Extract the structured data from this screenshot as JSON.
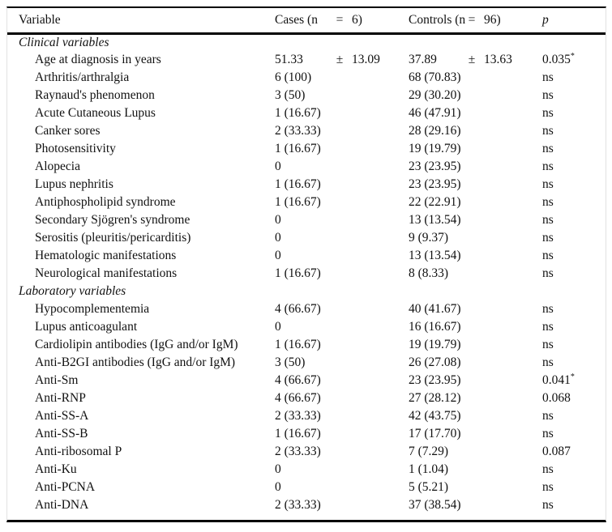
{
  "table": {
    "headers": {
      "variable": "Variable",
      "cases_left": "Cases (n",
      "cases_eq": "=",
      "cases_right": "6)",
      "controls_left": "Controls (n",
      "controls_eq": "=",
      "controls_right": "96)",
      "p": "p"
    },
    "sections": [
      {
        "title": "Clinical variables",
        "rows": [
          {
            "label": "Age at diagnosis in years",
            "cases_val": "51.33",
            "cases_pm": "±",
            "cases_sd": "13.09",
            "controls_val": "37.89",
            "controls_pm": "±",
            "controls_sd": "13.63",
            "p": "0.035",
            "p_sup": "*"
          },
          {
            "label": "Arthritis/arthralgia",
            "cases_val": "6 (100)",
            "controls_val": "68 (70.83)",
            "p": "ns"
          },
          {
            "label": "Raynaud's phenomenon",
            "cases_val": "3 (50)",
            "controls_val": "29 (30.20)",
            "p": "ns"
          },
          {
            "label": "Acute Cutaneous Lupus",
            "cases_val": "1 (16.67)",
            "controls_val": "46 (47.91)",
            "p": "ns"
          },
          {
            "label": "Canker sores",
            "cases_val": "2 (33.33)",
            "controls_val": "28 (29.16)",
            "p": "ns"
          },
          {
            "label": "Photosensitivity",
            "cases_val": "1 (16.67)",
            "controls_val": "19 (19.79)",
            "p": "ns"
          },
          {
            "label": "Alopecia",
            "cases_val": "0",
            "controls_val": "23 (23.95)",
            "p": "ns"
          },
          {
            "label": "Lupus nephritis",
            "cases_val": "1 (16.67)",
            "controls_val": "23 (23.95)",
            "p": "ns"
          },
          {
            "label": "Antiphospholipid syndrome",
            "cases_val": "1 (16.67)",
            "controls_val": "22 (22.91)",
            "p": "ns"
          },
          {
            "label": "Secondary Sjögren's syndrome",
            "cases_val": "0",
            "controls_val": "13 (13.54)",
            "p": "ns"
          },
          {
            "label": "Serositis (pleuritis/pericarditis)",
            "cases_val": "0",
            "controls_val": "9 (9.37)",
            "p": "ns"
          },
          {
            "label": "Hematologic manifestations",
            "cases_val": "0",
            "controls_val": "13 (13.54)",
            "p": "ns"
          },
          {
            "label": "Neurological manifestations",
            "cases_val": "1 (16.67)",
            "controls_val": "8 (8.33)",
            "p": "ns"
          }
        ]
      },
      {
        "title": "Laboratory variables",
        "rows": [
          {
            "label": "Hypocomplementemia",
            "cases_val": "4 (66.67)",
            "controls_val": "40 (41.67)",
            "p": "ns"
          },
          {
            "label": "Lupus anticoagulant",
            "cases_val": "0",
            "controls_val": "16 (16.67)",
            "p": "ns"
          },
          {
            "label": "Cardiolipin antibodies (IgG and/or IgM)",
            "cases_val": "1 (16.67)",
            "controls_val": "19 (19.79)",
            "p": "ns"
          },
          {
            "label": "Anti-B2GI antibodies (IgG and/or IgM)",
            "cases_val": "3 (50)",
            "controls_val": "26 (27.08)",
            "p": "ns"
          },
          {
            "label": "Anti-Sm",
            "cases_val": "4 (66.67)",
            "controls_val": "23 (23.95)",
            "p": "0.041",
            "p_sup": "*"
          },
          {
            "label": "Anti-RNP",
            "cases_val": "4 (66.67)",
            "controls_val": "27 (28.12)",
            "p": "0.068"
          },
          {
            "label": "Anti-SS-A",
            "cases_val": "2 (33.33)",
            "controls_val": "42 (43.75)",
            "p": "ns"
          },
          {
            "label": "Anti-SS-B",
            "cases_val": "1 (16.67)",
            "controls_val": "17 (17.70)",
            "p": "ns"
          },
          {
            "label": "Anti-ribosomal P",
            "cases_val": "2 (33.33)",
            "controls_val": "7 (7.29)",
            "p": "0.087"
          },
          {
            "label": "Anti-Ku",
            "cases_val": "0",
            "controls_val": "1 (1.04)",
            "p": "ns"
          },
          {
            "label": "Anti-PCNA",
            "cases_val": "0",
            "controls_val": "5 (5.21)",
            "p": "ns"
          },
          {
            "label": "Anti-DNA",
            "cases_val": "2 (33.33)",
            "controls_val": "37 (38.54)",
            "p": "ns"
          }
        ]
      }
    ]
  },
  "colors": {
    "rule": "#000000",
    "frame_edge": "#e2e2e2",
    "text": "#111111",
    "background": "#ffffff"
  }
}
